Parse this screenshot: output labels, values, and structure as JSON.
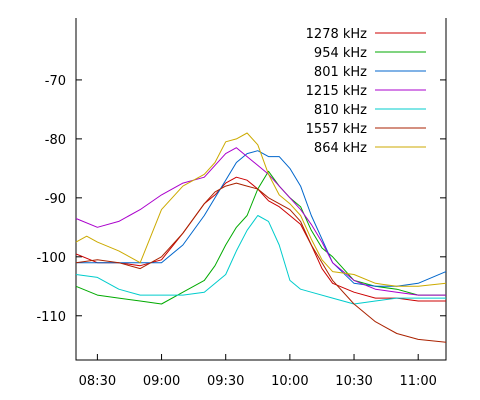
{
  "chart_data": {
    "type": "line",
    "title": "",
    "xlabel": "",
    "ylabel": "",
    "xlim": [
      "08:20",
      "11:13"
    ],
    "ylim": [
      -117.5,
      -59.5
    ],
    "grid": false,
    "legend_position": "top-right",
    "x_ticks": [
      "08:30",
      "09:00",
      "09:30",
      "10:00",
      "10:30",
      "11:00"
    ],
    "y_ticks": [
      -70,
      -80,
      -90,
      -100,
      -110
    ],
    "series": [
      {
        "name": "1278 kHz",
        "color": "#cc0000",
        "x": [
          "08:20",
          "08:30",
          "08:40",
          "08:50",
          "09:00",
          "09:10",
          "09:15",
          "09:20",
          "09:25",
          "09:30",
          "09:35",
          "09:40",
          "09:45",
          "09:50",
          "09:55",
          "10:00",
          "10:05",
          "10:10",
          "10:15",
          "10:20",
          "10:30",
          "10:40",
          "10:50",
          "11:00",
          "11:13"
        ],
        "y": [
          -99.5,
          -101,
          -101,
          -101.5,
          -100.5,
          -96,
          -93.5,
          -91,
          -89.5,
          -87.5,
          -86.5,
          -87,
          -88.5,
          -90.5,
          -91.5,
          -93,
          -94.5,
          -98,
          -102,
          -104.5,
          -106,
          -107,
          -107,
          -107.5,
          -107.5
        ]
      },
      {
        "name": "954 kHz",
        "color": "#00aa00",
        "x": [
          "08:20",
          "08:30",
          "08:40",
          "08:50",
          "09:00",
          "09:10",
          "09:20",
          "09:25",
          "09:30",
          "09:35",
          "09:40",
          "09:45",
          "09:50",
          "09:55",
          "10:00",
          "10:05",
          "10:10",
          "10:15",
          "10:20",
          "10:30",
          "10:40",
          "10:50",
          "11:00",
          "11:13"
        ],
        "y": [
          -105,
          -106.5,
          -107,
          -107.5,
          -108,
          -106,
          -104,
          -101.5,
          -98,
          -95,
          -93,
          -88.5,
          -85.5,
          -88,
          -90,
          -91.5,
          -95.5,
          -98.5,
          -100,
          -104,
          -105,
          -105.5,
          -106.5,
          -106.5
        ]
      },
      {
        "name": "801 kHz",
        "color": "#0066cc",
        "x": [
          "08:20",
          "08:30",
          "08:40",
          "08:50",
          "09:00",
          "09:10",
          "09:20",
          "09:25",
          "09:30",
          "09:35",
          "09:40",
          "09:45",
          "09:50",
          "09:55",
          "10:00",
          "10:05",
          "10:10",
          "10:15",
          "10:20",
          "10:30",
          "10:40",
          "10:50",
          "11:00",
          "11:13"
        ],
        "y": [
          -101,
          -101,
          -101,
          -101,
          -101,
          -98,
          -93,
          -90,
          -87,
          -84,
          -82.5,
          -82,
          -83,
          -83,
          -85,
          -88,
          -93,
          -97,
          -101,
          -104.5,
          -105,
          -105,
          -104.5,
          -102.5
        ]
      },
      {
        "name": "1215 kHz",
        "color": "#aa00cc",
        "x": [
          "08:20",
          "08:30",
          "08:40",
          "08:50",
          "09:00",
          "09:10",
          "09:20",
          "09:30",
          "09:35",
          "09:40",
          "09:45",
          "09:50",
          "09:55",
          "10:00",
          "10:05",
          "10:10",
          "10:15",
          "10:20",
          "10:30",
          "10:40",
          "10:50",
          "11:00",
          "11:13"
        ],
        "y": [
          -93.5,
          -95,
          -94,
          -92,
          -89.5,
          -87.5,
          -86.5,
          -82.5,
          -81.5,
          -83,
          -84.5,
          -86,
          -88,
          -90,
          -92,
          -94.5,
          -97.5,
          -101,
          -104,
          -105.5,
          -106,
          -106.5,
          -106.5
        ]
      },
      {
        "name": "810 kHz",
        "color": "#00cccc",
        "x": [
          "08:20",
          "08:30",
          "08:40",
          "08:50",
          "09:00",
          "09:10",
          "09:20",
          "09:30",
          "09:35",
          "09:40",
          "09:45",
          "09:50",
          "09:55",
          "10:00",
          "10:05",
          "10:10",
          "10:20",
          "10:30",
          "10:40",
          "10:50",
          "11:00",
          "11:13"
        ],
        "y": [
          -103,
          -103.5,
          -105.5,
          -106.5,
          -106.5,
          -106.5,
          -106,
          -103,
          -99,
          -95.5,
          -93,
          -94,
          -98,
          -104,
          -105.5,
          -106,
          -107,
          -108,
          -107.5,
          -107,
          -107,
          -107
        ]
      },
      {
        "name": "1557 kHz",
        "color": "#aa2200",
        "x": [
          "08:20",
          "08:30",
          "08:40",
          "08:50",
          "09:00",
          "09:10",
          "09:20",
          "09:25",
          "09:30",
          "09:35",
          "09:40",
          "09:45",
          "09:50",
          "09:55",
          "10:00",
          "10:05",
          "10:10",
          "10:15",
          "10:20",
          "10:30",
          "10:40",
          "10:50",
          "11:00",
          "11:13"
        ],
        "y": [
          -101,
          -100.5,
          -101,
          -102,
          -100,
          -96,
          -91,
          -89,
          -88,
          -87.5,
          -88,
          -88.5,
          -90,
          -91,
          -92,
          -94,
          -98,
          -101,
          -104,
          -108,
          -111,
          -113,
          -114,
          -114.5
        ]
      },
      {
        "name": "864 kHz",
        "color": "#ccaa00",
        "x": [
          "08:20",
          "08:25",
          "08:30",
          "08:40",
          "08:50",
          "09:00",
          "09:10",
          "09:20",
          "09:25",
          "09:30",
          "09:35",
          "09:40",
          "09:45",
          "09:50",
          "09:55",
          "10:00",
          "10:05",
          "10:10",
          "10:15",
          "10:20",
          "10:30",
          "10:40",
          "10:50",
          "11:00",
          "11:13"
        ],
        "y": [
          -97.5,
          -96.5,
          -97.5,
          -99,
          -101,
          -92,
          -88,
          -86,
          -84,
          -80.5,
          -80,
          -79,
          -81,
          -86,
          -89.5,
          -91,
          -93,
          -97,
          -100.5,
          -102.5,
          -103,
          -104.5,
          -105,
          -105,
          -104.5
        ]
      }
    ]
  }
}
